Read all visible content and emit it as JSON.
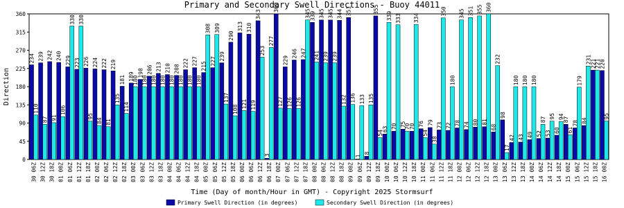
{
  "chart_data": {
    "type": "bar",
    "title": "Primary and Secondary Swell Directions - Buoy 44011",
    "x_label": "Time (Day of month/Hour in GMT) - Copyright 2025 Stormsurf",
    "y_label": "Direction",
    "categories": [
      "30 06Z",
      "30 12Z",
      "30 18Z",
      "01 00Z",
      "01 06Z",
      "01 12Z",
      "01 18Z",
      "02 00Z",
      "02 06Z",
      "02 12Z",
      "02 18Z",
      "03 00Z",
      "03 06Z",
      "03 12Z",
      "03 18Z",
      "04 00Z",
      "04 06Z",
      "04 12Z",
      "04 18Z",
      "05 00Z",
      "05 06Z",
      "05 12Z",
      "05 18Z",
      "06 00Z",
      "06 06Z",
      "06 12Z",
      "06 18Z",
      "07 00Z",
      "07 06Z",
      "07 12Z",
      "07 18Z",
      "08 00Z",
      "08 06Z",
      "08 12Z",
      "08 18Z",
      "09 00Z",
      "09 06Z",
      "09 12Z",
      "09 18Z",
      "10 00Z",
      "10 06Z",
      "10 12Z",
      "10 18Z",
      "11 00Z",
      "11 06Z",
      "11 12Z",
      "11 18Z",
      "12 00Z",
      "12 06Z",
      "12 12Z",
      "12 18Z",
      "13 00Z",
      "13 06Z",
      "13 12Z",
      "13 18Z",
      "14 00Z",
      "14 06Z",
      "14 12Z",
      "14 18Z",
      "15 00Z",
      "15 06Z",
      "15 12Z",
      "15 18Z",
      "16 00Z"
    ],
    "series": [
      {
        "name": "Primary Swell Direction (in degrees)",
        "color": "#0a0aa8",
        "values": [
          234,
          239,
          242,
          240,
          229,
          223,
          226,
          224,
          222,
          219,
          181,
          189,
          198,
          206,
          213,
          210,
          208,
          222,
          227,
          215,
          227,
          239,
          290,
          313,
          310,
          343,
          3,
          360,
          229,
          246,
          247,
          339,
          345,
          345,
          344,
          351,
          1,
          8,
          355,
          63,
          70,
          75,
          70,
          76,
          79,
          73,
          72,
          78,
          74,
          80,
          81,
          68,
          98,
          42,
          43,
          49,
          52,
          53,
          60,
          87,
          78,
          84,
          221,
          220
        ]
      },
      {
        "name": "Secondary Swell Direction (in degrees)",
        "color": "#1ee8e8",
        "values": [
          110,
          87,
          91,
          106,
          330,
          330,
          95,
          84,
          81,
          135,
          114,
          180,
          180,
          180,
          180,
          180,
          180,
          180,
          180,
          308,
          309,
          137,
          108,
          121,
          119,
          253,
          277,
          127,
          126,
          126,
          345,
          241,
          239,
          239,
          132,
          136,
          133,
          135,
          54,
          339,
          333,
          70,
          334,
          54,
          38,
          350,
          180,
          345,
          351,
          355,
          360,
          232,
          17,
          180,
          180,
          180,
          87,
          95,
          94,
          61,
          179,
          231,
          221,
          95
        ]
      }
    ],
    "ylim": [
      0,
      360
    ],
    "yticks": [
      0,
      45,
      90,
      135,
      180,
      225,
      270,
      315,
      360
    ],
    "grid": false
  }
}
